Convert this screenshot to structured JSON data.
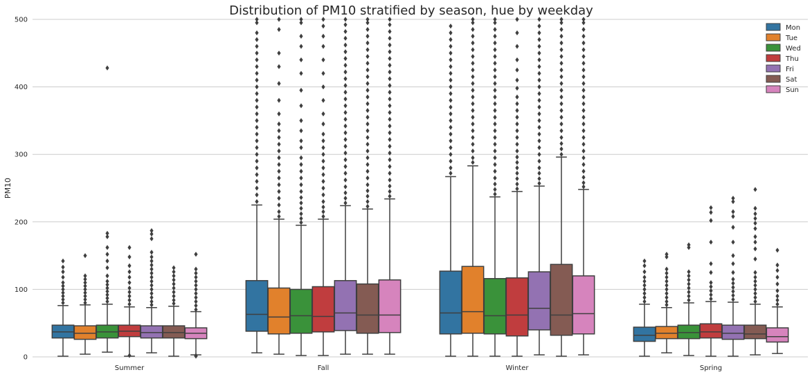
{
  "chart_data": {
    "type": "box",
    "title": "Distribution of PM10 stratified by season, hue by weekday",
    "xlabel": "",
    "ylabel": "PM10",
    "ylim": [
      0,
      500
    ],
    "yticks": [
      0,
      100,
      200,
      300,
      400,
      500
    ],
    "grid": "horizontal",
    "legend_position": "top-right",
    "categories": [
      "Summer",
      "Fall",
      "Winter",
      "Spring"
    ],
    "series": [
      {
        "name": "Mon",
        "color": "#3274a1",
        "boxes": [
          {
            "whisker_low": 1,
            "q1": 28,
            "median": 37,
            "q3": 47,
            "whisker_high": 76,
            "outliers": [
              80,
              85,
              90,
              95,
              100,
              105,
              110,
              118,
              126,
              133,
              142
            ]
          },
          {
            "whisker_low": 6,
            "q1": 38,
            "median": 63,
            "q3": 113,
            "whisker_high": 225,
            "outliers": [
              230,
              240,
              250,
              260,
              270,
              280,
              290,
              300,
              310,
              320,
              330,
              340,
              350,
              360,
              370,
              380,
              390,
              400,
              410,
              420,
              430,
              440,
              450,
              460,
              470,
              480,
              495,
              500
            ]
          },
          {
            "whisker_low": 1,
            "q1": 34,
            "median": 65,
            "q3": 127,
            "whisker_high": 267,
            "outliers": [
              272,
              280,
              290,
              300,
              310,
              320,
              330,
              340,
              350,
              360,
              370,
              380,
              390,
              400,
              410,
              420,
              430,
              440,
              450,
              460,
              470,
              480,
              490
            ]
          },
          {
            "whisker_low": 1,
            "q1": 23,
            "median": 32,
            "q3": 44,
            "whisker_high": 78,
            "outliers": [
              82,
              88,
              94,
              100,
              106,
              112,
              118,
              126,
              135,
              142
            ]
          }
        ]
      },
      {
        "name": "Tue",
        "color": "#e1812c",
        "boxes": [
          {
            "whisker_low": 4,
            "q1": 26,
            "median": 35,
            "q3": 46,
            "whisker_high": 77,
            "outliers": [
              80,
              85,
              90,
              95,
              100,
              105,
              110,
              115,
              120,
              150
            ]
          },
          {
            "whisker_low": 4,
            "q1": 34,
            "median": 59,
            "q3": 102,
            "whisker_high": 204,
            "outliers": [
              208,
              215,
              225,
              235,
              245,
              255,
              265,
              275,
              285,
              295,
              305,
              315,
              325,
              335,
              345,
              360,
              380,
              405,
              430,
              450,
              485,
              500
            ]
          },
          {
            "whisker_low": 1,
            "q1": 35,
            "median": 67,
            "q3": 134,
            "whisker_high": 283,
            "outliers": [
              288,
              295,
              305,
              315,
              325,
              335,
              345,
              355,
              365,
              375,
              385,
              395,
              405,
              415,
              425,
              435,
              445,
              455,
              465,
              475,
              485,
              495,
              500
            ]
          },
          {
            "whisker_low": 6,
            "q1": 27,
            "median": 35,
            "q3": 45,
            "whisker_high": 73,
            "outliers": [
              77,
              82,
              88,
              94,
              100,
              106,
              112,
              118,
              124,
              130,
              148,
              152
            ]
          }
        ]
      },
      {
        "name": "Wed",
        "color": "#3a923a",
        "boxes": [
          {
            "whisker_low": 7,
            "q1": 28,
            "median": 37,
            "q3": 47,
            "whisker_high": 78,
            "outliers": [
              82,
              87,
              92,
              97,
              102,
              107,
              112,
              120,
              132,
              142,
              152,
              162,
              178,
              183,
              428
            ]
          },
          {
            "whisker_low": 2,
            "q1": 35,
            "median": 61,
            "q3": 100,
            "whisker_high": 195,
            "outliers": [
              199,
              205,
              212,
              220,
              228,
              236,
              245,
              255,
              265,
              275,
              285,
              295,
              310,
              320,
              335,
              350,
              372,
              395,
              420,
              440,
              460,
              475,
              495,
              500
            ]
          },
          {
            "whisker_low": 1,
            "q1": 34,
            "median": 61,
            "q3": 116,
            "whisker_high": 237,
            "outliers": [
              241,
              248,
              256,
              265,
              275,
              285,
              295,
              305,
              315,
              325,
              335,
              345,
              355,
              365,
              375,
              385,
              395,
              405,
              415,
              425,
              435,
              445,
              455,
              465,
              475,
              485,
              495,
              500
            ]
          },
          {
            "whisker_low": 2,
            "q1": 27,
            "median": 36,
            "q3": 47,
            "whisker_high": 80,
            "outliers": [
              84,
              90,
              96,
              102,
              108,
              114,
              120,
              126,
              162,
              166
            ]
          }
        ]
      },
      {
        "name": "Thu",
        "color": "#c03d3e",
        "boxes": [
          {
            "whisker_low": 1,
            "q1": 30,
            "median": 38,
            "q3": 47,
            "whisker_high": 74,
            "outliers": [
              2,
              78,
              84,
              90,
              96,
              102,
              110,
              118,
              126,
              135,
              148,
              162
            ]
          },
          {
            "whisker_low": 2,
            "q1": 37,
            "median": 60,
            "q3": 104,
            "whisker_high": 204,
            "outliers": [
              208,
              215,
              222,
              230,
              240,
              250,
              260,
              270,
              280,
              290,
              300,
              310,
              320,
              330,
              345,
              360,
              380,
              400,
              420,
              440,
              460,
              475,
              490,
              500
            ]
          },
          {
            "whisker_low": 1,
            "q1": 31,
            "median": 62,
            "q3": 117,
            "whisker_high": 245,
            "outliers": [
              249,
              256,
              264,
              272,
              280,
              288,
              296,
              305,
              315,
              325,
              335,
              345,
              355,
              365,
              375,
              385,
              398,
              410,
              425,
              440,
              460,
              480,
              500
            ]
          },
          {
            "whisker_low": 1,
            "q1": 28,
            "median": 37,
            "q3": 49,
            "whisker_high": 82,
            "outliers": [
              86,
              92,
              98,
              104,
              110,
              125,
              138,
              170,
              202,
              214,
              221
            ]
          }
        ]
      },
      {
        "name": "Fri",
        "color": "#9372b2",
        "boxes": [
          {
            "whisker_low": 6,
            "q1": 28,
            "median": 36,
            "q3": 46,
            "whisker_high": 73,
            "outliers": [
              77,
              82,
              88,
              94,
              100,
              106,
              112,
              118,
              124,
              130,
              136,
              142,
              148,
              155,
              175,
              182,
              187
            ]
          },
          {
            "whisker_low": 4,
            "q1": 39,
            "median": 65,
            "q3": 113,
            "whisker_high": 224,
            "outliers": [
              228,
              235,
              243,
              252,
              262,
              272,
              282,
              292,
              302,
              312,
              322,
              332,
              342,
              352,
              362,
              372,
              382,
              392,
              402,
              412,
              422,
              432,
              442,
              452,
              462,
              472,
              482,
              492,
              500
            ]
          },
          {
            "whisker_low": 3,
            "q1": 40,
            "median": 72,
            "q3": 126,
            "whisker_high": 253,
            "outliers": [
              257,
              264,
              272,
              280,
              290,
              300,
              310,
              320,
              330,
              340,
              350,
              360,
              370,
              380,
              390,
              400,
              410,
              420,
              430,
              440,
              450,
              460,
              470,
              480,
              490,
              500
            ]
          },
          {
            "whisker_low": 1,
            "q1": 26,
            "median": 35,
            "q3": 47,
            "whisker_high": 81,
            "outliers": [
              85,
              91,
              97,
              103,
              109,
              115,
              125,
              138,
              150,
              170,
              192,
              208,
              215,
              230,
              235
            ]
          }
        ]
      },
      {
        "name": "Sat",
        "color": "#845b53",
        "boxes": [
          {
            "whisker_low": 1,
            "q1": 28,
            "median": 36,
            "q3": 46,
            "whisker_high": 75,
            "outliers": [
              79,
              84,
              90,
              96,
              102,
              108,
              114,
              120,
              126,
              132
            ]
          },
          {
            "whisker_low": 4,
            "q1": 35,
            "median": 62,
            "q3": 108,
            "whisker_high": 219,
            "outliers": [
              223,
              230,
              238,
              246,
              255,
              265,
              275,
              285,
              295,
              305,
              315,
              325,
              335,
              345,
              355,
              365,
              375,
              385,
              395,
              405,
              415,
              425,
              435,
              445,
              455,
              465,
              475,
              485,
              495,
              500
            ]
          },
          {
            "whisker_low": 1,
            "q1": 32,
            "median": 62,
            "q3": 137,
            "whisker_high": 296,
            "outliers": [
              300,
              308,
              316,
              325,
              335,
              345,
              355,
              365,
              375,
              385,
              395,
              405,
              415,
              425,
              435,
              445,
              455,
              465,
              475,
              485,
              495,
              500
            ]
          },
          {
            "whisker_low": 3,
            "q1": 27,
            "median": 34,
            "q3": 47,
            "whisker_high": 78,
            "outliers": [
              82,
              88,
              94,
              100,
              106,
              112,
              118,
              125,
              145,
              160,
              170,
              178,
              190,
              198,
              205,
              212,
              220,
              248
            ]
          }
        ]
      },
      {
        "name": "Sun",
        "color": "#d684bd",
        "boxes": [
          {
            "whisker_low": 3,
            "q1": 27,
            "median": 35,
            "q3": 43,
            "whisker_high": 67,
            "outliers": [
              1,
              2,
              70,
              76,
              82,
              88,
              94,
              100,
              106,
              112,
              118,
              124,
              130,
              152
            ]
          },
          {
            "whisker_low": 4,
            "q1": 36,
            "median": 62,
            "q3": 114,
            "whisker_high": 234,
            "outliers": [
              238,
              245,
              253,
              262,
              272,
              282,
              292,
              302,
              312,
              322,
              332,
              342,
              352,
              362,
              372,
              382,
              392,
              402,
              412,
              422,
              432,
              442,
              452,
              462,
              472,
              482,
              492,
              500
            ]
          },
          {
            "whisker_low": 3,
            "q1": 34,
            "median": 64,
            "q3": 120,
            "whisker_high": 248,
            "outliers": [
              252,
              258,
              266,
              275,
              285,
              295,
              305,
              315,
              325,
              335,
              345,
              355,
              365,
              375,
              385,
              395,
              405,
              415,
              425,
              435,
              445,
              455,
              465,
              475,
              485,
              495,
              500
            ]
          },
          {
            "whisker_low": 5,
            "q1": 22,
            "median": 30,
            "q3": 43,
            "whisker_high": 74,
            "outliers": [
              78,
              84,
              90,
              98,
              108,
              118,
              128,
              136,
              158
            ]
          }
        ]
      }
    ]
  }
}
